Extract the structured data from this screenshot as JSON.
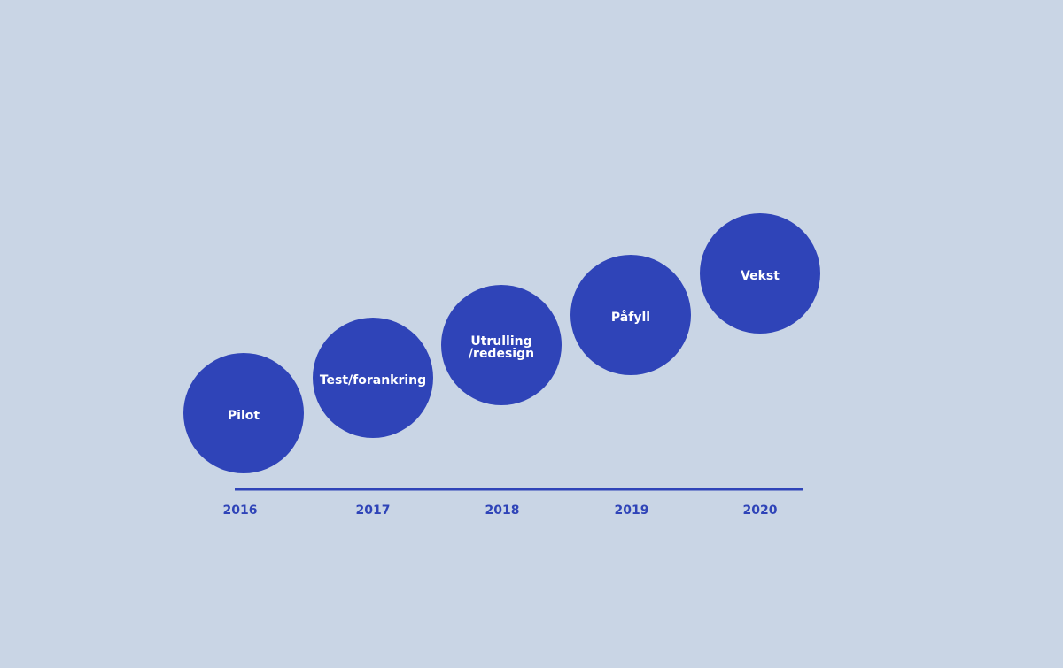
{
  "timeline": {
    "stages": [
      {
        "year": "2016",
        "lines": [
          "Pilot"
        ]
      },
      {
        "year": "2017",
        "lines": [
          "Test/forankring"
        ]
      },
      {
        "year": "2018",
        "lines": [
          "Utrulling",
          "/redesign"
        ]
      },
      {
        "year": "2019",
        "lines": [
          "Påfyll"
        ]
      },
      {
        "year": "2020",
        "lines": [
          "Vekst"
        ]
      }
    ]
  }
}
